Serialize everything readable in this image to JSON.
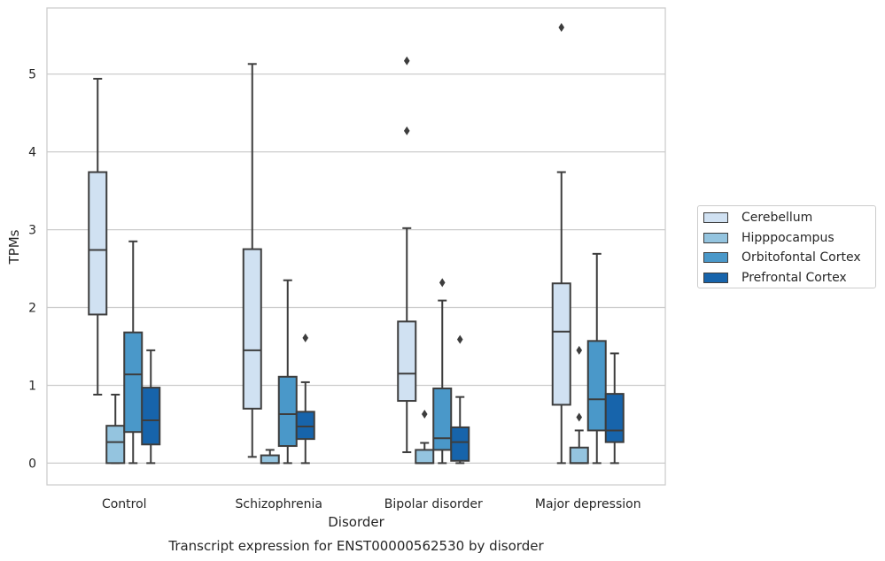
{
  "chart_data": {
    "type": "box",
    "title": "Transcript expression for ENST00000562530 by disorder",
    "xlabel": "Disorder",
    "ylabel": "TPMs",
    "ylim": [
      -0.28,
      5.85
    ],
    "yticks": [
      0,
      1,
      2,
      3,
      4,
      5
    ],
    "grid": true,
    "legend_position": "right",
    "categories": [
      "Control",
      "Schizophrenia",
      "Bipolar disorder",
      "Major depression"
    ],
    "series": [
      {
        "name": "Cerebellum",
        "color": "#d0e1f2",
        "boxes": [
          {
            "whislo": 0.88,
            "q1": 1.91,
            "med": 2.74,
            "q3": 3.74,
            "whishi": 4.94,
            "fliers": []
          },
          {
            "whislo": 0.08,
            "q1": 0.7,
            "med": 1.45,
            "q3": 2.75,
            "whishi": 5.13,
            "fliers": []
          },
          {
            "whislo": 0.14,
            "q1": 0.8,
            "med": 1.15,
            "q3": 1.82,
            "whishi": 3.02,
            "fliers": [
              4.27,
              5.17
            ]
          },
          {
            "whislo": 0.0,
            "q1": 0.75,
            "med": 1.69,
            "q3": 2.31,
            "whishi": 3.74,
            "fliers": [
              5.6
            ]
          }
        ]
      },
      {
        "name": "Hipppocampus",
        "color": "#94c4df",
        "boxes": [
          {
            "whislo": 0.0,
            "q1": 0.0,
            "med": 0.27,
            "q3": 0.48,
            "whishi": 0.88,
            "fliers": []
          },
          {
            "whislo": 0.0,
            "q1": 0.0,
            "med": 0.0,
            "q3": 0.1,
            "whishi": 0.17,
            "fliers": []
          },
          {
            "whislo": 0.0,
            "q1": 0.0,
            "med": 0.0,
            "q3": 0.17,
            "whishi": 0.26,
            "fliers": [
              0.63
            ]
          },
          {
            "whislo": 0.0,
            "q1": 0.0,
            "med": 0.0,
            "q3": 0.2,
            "whishi": 0.42,
            "fliers": [
              0.59,
              1.45
            ]
          }
        ]
      },
      {
        "name": "Orbitofontal Cortex",
        "color": "#4a98c9",
        "boxes": [
          {
            "whislo": 0.0,
            "q1": 0.4,
            "med": 1.14,
            "q3": 1.68,
            "whishi": 2.85,
            "fliers": []
          },
          {
            "whislo": 0.0,
            "q1": 0.22,
            "med": 0.63,
            "q3": 1.11,
            "whishi": 2.35,
            "fliers": []
          },
          {
            "whislo": 0.0,
            "q1": 0.17,
            "med": 0.32,
            "q3": 0.96,
            "whishi": 2.09,
            "fliers": [
              2.32
            ]
          },
          {
            "whislo": 0.0,
            "q1": 0.42,
            "med": 0.82,
            "q3": 1.57,
            "whishi": 2.69,
            "fliers": []
          }
        ]
      },
      {
        "name": "Prefrontal Cortex",
        "color": "#1764ab",
        "boxes": [
          {
            "whislo": 0.0,
            "q1": 0.24,
            "med": 0.55,
            "q3": 0.97,
            "whishi": 1.45,
            "fliers": []
          },
          {
            "whislo": 0.0,
            "q1": 0.31,
            "med": 0.47,
            "q3": 0.66,
            "whishi": 1.04,
            "fliers": [
              1.61
            ]
          },
          {
            "whislo": 0.0,
            "q1": 0.03,
            "med": 0.27,
            "q3": 0.46,
            "whishi": 0.85,
            "fliers": [
              1.59
            ]
          },
          {
            "whislo": 0.0,
            "q1": 0.27,
            "med": 0.42,
            "q3": 0.89,
            "whishi": 1.41,
            "fliers": []
          }
        ]
      }
    ]
  }
}
